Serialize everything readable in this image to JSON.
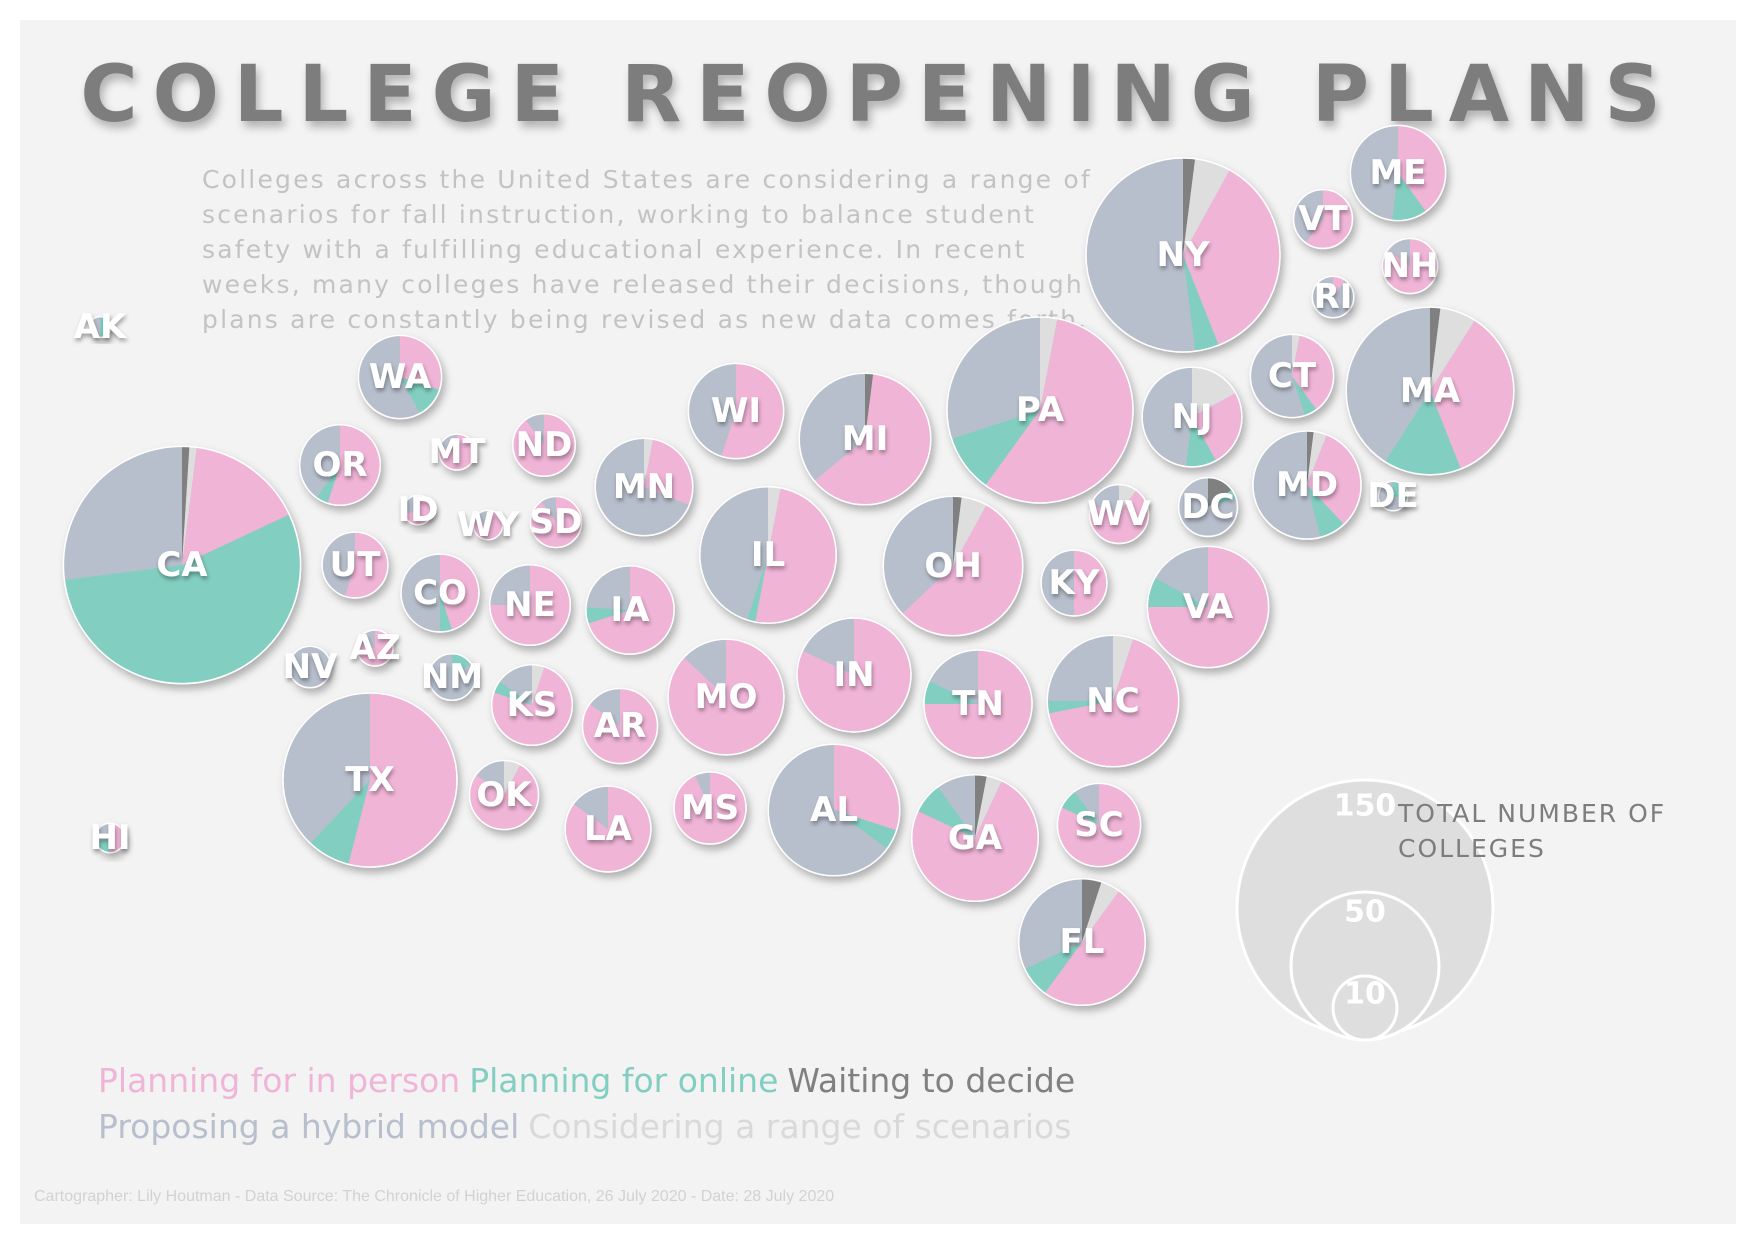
{
  "title": "COLLEGE REOPENING PLANS",
  "intro": "Colleges across the United States are considering a range of scenarios for fall instruction, working to balance student safety with a fulfilling educational experience. In recent weeks, many colleges have released their decisions, though plans are constantly being revised as new data comes forth.",
  "colors": {
    "in_person": "#f0b4d7",
    "online": "#82cfc1",
    "waiting": "#808080",
    "hybrid": "#b7bfcd",
    "range": "#dedede",
    "label": "#ffffff"
  },
  "legend": [
    {
      "key": "in_person",
      "label": "Planning for in person"
    },
    {
      "key": "online",
      "label": "Planning for online"
    },
    {
      "key": "waiting",
      "label": "Waiting to decide"
    },
    {
      "key": "hybrid",
      "label": "Proposing a hybrid model"
    },
    {
      "key": "range",
      "label": "Considering a range of scenarios"
    }
  ],
  "size_legend": {
    "title": "TOTAL NUMBER OF COLLEGES",
    "values": [
      150,
      50,
      10
    ]
  },
  "credits": "Cartographer: Lily Houtman - Data Source: The Chronicle of Higher Education, 26 July 2020 - Date: 28 July 2020",
  "chart_data": {
    "type": "pie",
    "segment_order": [
      "waiting",
      "range",
      "in_person",
      "online",
      "hybrid"
    ],
    "states": [
      {
        "code": "AK",
        "total": 1,
        "shares": {
          "waiting": 0,
          "range": 0,
          "in_person": 0,
          "online": 0.5,
          "hybrid": 0.5
        }
      },
      {
        "code": "WA",
        "total": 16,
        "shares": {
          "waiting": 0,
          "range": 0,
          "in_person": 0.3,
          "online": 0.12,
          "hybrid": 0.58
        }
      },
      {
        "code": "OR",
        "total": 15,
        "shares": {
          "waiting": 0,
          "range": 0,
          "in_person": 0.55,
          "online": 0.05,
          "hybrid": 0.4
        }
      },
      {
        "code": "CA",
        "total": 130,
        "shares": {
          "waiting": 0.01,
          "range": 0.01,
          "in_person": 0.16,
          "online": 0.55,
          "hybrid": 0.27
        }
      },
      {
        "code": "MT",
        "total": 3,
        "shares": {
          "waiting": 0,
          "range": 0,
          "in_person": 0.8,
          "online": 0,
          "hybrid": 0.2
        }
      },
      {
        "code": "ID",
        "total": 2,
        "shares": {
          "waiting": 0,
          "range": 0,
          "in_person": 0.7,
          "online": 0,
          "hybrid": 0.3
        }
      },
      {
        "code": "ND",
        "total": 9,
        "shares": {
          "waiting": 0,
          "range": 0,
          "in_person": 0.9,
          "online": 0,
          "hybrid": 0.1
        }
      },
      {
        "code": "WY",
        "total": 2,
        "shares": {
          "waiting": 0,
          "range": 0,
          "in_person": 0.8,
          "online": 0,
          "hybrid": 0.2
        }
      },
      {
        "code": "SD",
        "total": 6,
        "shares": {
          "waiting": 0,
          "range": 0,
          "in_person": 0.9,
          "online": 0,
          "hybrid": 0.1
        }
      },
      {
        "code": "UT",
        "total": 10,
        "shares": {
          "waiting": 0,
          "range": 0,
          "in_person": 0.55,
          "online": 0,
          "hybrid": 0.45
        }
      },
      {
        "code": "CO",
        "total": 14,
        "shares": {
          "waiting": 0,
          "range": 0,
          "in_person": 0.45,
          "online": 0.05,
          "hybrid": 0.5
        }
      },
      {
        "code": "NV",
        "total": 4,
        "shares": {
          "waiting": 0,
          "range": 0,
          "in_person": 0,
          "online": 0,
          "hybrid": 1
        }
      },
      {
        "code": "AZ",
        "total": 3,
        "shares": {
          "waiting": 0,
          "range": 0,
          "in_person": 0.8,
          "online": 0,
          "hybrid": 0.2
        }
      },
      {
        "code": "NM",
        "total": 5,
        "shares": {
          "waiting": 0,
          "range": 0,
          "in_person": 0,
          "online": 0.15,
          "hybrid": 0.85
        }
      },
      {
        "code": "NE",
        "total": 15,
        "shares": {
          "waiting": 0,
          "range": 0,
          "in_person": 0.75,
          "online": 0,
          "hybrid": 0.25
        }
      },
      {
        "code": "KS",
        "total": 15,
        "shares": {
          "waiting": 0,
          "range": 0.05,
          "in_person": 0.75,
          "online": 0.05,
          "hybrid": 0.15
        }
      },
      {
        "code": "TX",
        "total": 70,
        "shares": {
          "waiting": 0,
          "range": 0,
          "in_person": 0.54,
          "online": 0.08,
          "hybrid": 0.38
        }
      },
      {
        "code": "OK",
        "total": 11,
        "shares": {
          "waiting": 0,
          "range": 0.08,
          "in_person": 0.77,
          "online": 0,
          "hybrid": 0.15
        }
      },
      {
        "code": "HI",
        "total": 2,
        "shares": {
          "waiting": 0,
          "range": 0,
          "in_person": 0.5,
          "online": 0.2,
          "hybrid": 0.3
        }
      },
      {
        "code": "MN",
        "total": 22,
        "shares": {
          "waiting": 0,
          "range": 0.03,
          "in_person": 0.28,
          "online": 0,
          "hybrid": 0.69
        }
      },
      {
        "code": "IA",
        "total": 18,
        "shares": {
          "waiting": 0,
          "range": 0,
          "in_person": 0.7,
          "online": 0.06,
          "hybrid": 0.24
        }
      },
      {
        "code": "AR",
        "total": 13,
        "shares": {
          "waiting": 0,
          "range": 0,
          "in_person": 0.85,
          "online": 0,
          "hybrid": 0.15
        }
      },
      {
        "code": "LA",
        "total": 17,
        "shares": {
          "waiting": 0,
          "range": 0,
          "in_person": 0.85,
          "online": 0,
          "hybrid": 0.15
        }
      },
      {
        "code": "MO",
        "total": 31,
        "shares": {
          "waiting": 0,
          "range": 0,
          "in_person": 0.87,
          "online": 0,
          "hybrid": 0.13
        }
      },
      {
        "code": "MS",
        "total": 12,
        "shares": {
          "waiting": 0,
          "range": 0,
          "in_person": 0.93,
          "online": 0,
          "hybrid": 0.07
        }
      },
      {
        "code": "WI",
        "total": 21,
        "shares": {
          "waiting": 0,
          "range": 0,
          "in_person": 0.55,
          "online": 0,
          "hybrid": 0.45
        }
      },
      {
        "code": "IL",
        "total": 43,
        "shares": {
          "waiting": 0,
          "range": 0.03,
          "in_person": 0.5,
          "online": 0.02,
          "hybrid": 0.45
        }
      },
      {
        "code": "IN",
        "total": 30,
        "shares": {
          "waiting": 0,
          "range": 0,
          "in_person": 0.82,
          "online": 0,
          "hybrid": 0.18
        }
      },
      {
        "code": "AL",
        "total": 40,
        "shares": {
          "waiting": 0,
          "range": 0,
          "in_person": 0.3,
          "online": 0.05,
          "hybrid": 0.65
        }
      },
      {
        "code": "MI",
        "total": 40,
        "shares": {
          "waiting": 0.02,
          "range": 0,
          "in_person": 0.62,
          "online": 0,
          "hybrid": 0.36
        }
      },
      {
        "code": "OH",
        "total": 45,
        "shares": {
          "waiting": 0.02,
          "range": 0.06,
          "in_person": 0.55,
          "online": 0,
          "hybrid": 0.37
        }
      },
      {
        "code": "TN",
        "total": 27,
        "shares": {
          "waiting": 0,
          "range": 0,
          "in_person": 0.75,
          "online": 0.07,
          "hybrid": 0.18
        }
      },
      {
        "code": "GA",
        "total": 37,
        "shares": {
          "waiting": 0.03,
          "range": 0.04,
          "in_person": 0.75,
          "online": 0.08,
          "hybrid": 0.1
        }
      },
      {
        "code": "PA",
        "total": 80,
        "shares": {
          "waiting": 0,
          "range": 0.03,
          "in_person": 0.57,
          "online": 0.1,
          "hybrid": 0.3
        }
      },
      {
        "code": "KY",
        "total": 10,
        "shares": {
          "waiting": 0,
          "range": 0,
          "in_person": 0.5,
          "online": 0,
          "hybrid": 0.5
        }
      },
      {
        "code": "WV",
        "total": 8,
        "shares": {
          "waiting": 0,
          "range": 0.1,
          "in_person": 0.7,
          "online": 0,
          "hybrid": 0.2
        }
      },
      {
        "code": "NY",
        "total": 87,
        "shares": {
          "waiting": 0.02,
          "range": 0.06,
          "in_person": 0.36,
          "online": 0.04,
          "hybrid": 0.52
        }
      },
      {
        "code": "NJ",
        "total": 23,
        "shares": {
          "waiting": 0,
          "range": 0.17,
          "in_person": 0.25,
          "online": 0.1,
          "hybrid": 0.48
        }
      },
      {
        "code": "DC",
        "total": 8,
        "shares": {
          "waiting": 0.15,
          "range": 0,
          "in_person": 0,
          "online": 0.05,
          "hybrid": 0.8
        }
      },
      {
        "code": "MD",
        "total": 27,
        "shares": {
          "waiting": 0.02,
          "range": 0.04,
          "in_person": 0.32,
          "online": 0.08,
          "hybrid": 0.54
        }
      },
      {
        "code": "DE",
        "total": 2,
        "shares": {
          "waiting": 0,
          "range": 0,
          "in_person": 0,
          "online": 0.3,
          "hybrid": 0.7
        }
      },
      {
        "code": "VA",
        "total": 34,
        "shares": {
          "waiting": 0,
          "range": 0,
          "in_person": 0.75,
          "online": 0.08,
          "hybrid": 0.17
        }
      },
      {
        "code": "NC",
        "total": 40,
        "shares": {
          "waiting": 0,
          "range": 0.05,
          "in_person": 0.67,
          "online": 0.03,
          "hybrid": 0.25
        }
      },
      {
        "code": "SC",
        "total": 16,
        "shares": {
          "waiting": 0,
          "range": 0,
          "in_person": 0.82,
          "online": 0.08,
          "hybrid": 0.1
        }
      },
      {
        "code": "FL",
        "total": 37,
        "shares": {
          "waiting": 0.05,
          "range": 0.05,
          "in_person": 0.5,
          "online": 0.08,
          "hybrid": 0.32
        }
      },
      {
        "code": "ME",
        "total": 21,
        "shares": {
          "waiting": 0,
          "range": 0,
          "in_person": 0.4,
          "online": 0.12,
          "hybrid": 0.48
        }
      },
      {
        "code": "VT",
        "total": 8,
        "shares": {
          "waiting": 0,
          "range": 0,
          "in_person": 0.6,
          "online": 0,
          "hybrid": 0.4
        }
      },
      {
        "code": "NH",
        "total": 7,
        "shares": {
          "waiting": 0,
          "range": 0,
          "in_person": 0.85,
          "online": 0,
          "hybrid": 0.15
        }
      },
      {
        "code": "RI",
        "total": 4,
        "shares": {
          "waiting": 0,
          "range": 0,
          "in_person": 0.1,
          "online": 0,
          "hybrid": 0.9
        }
      },
      {
        "code": "CT",
        "total": 16,
        "shares": {
          "waiting": 0,
          "range": 0.03,
          "in_person": 0.37,
          "online": 0.05,
          "hybrid": 0.55
        }
      },
      {
        "code": "MA",
        "total": 65,
        "shares": {
          "waiting": 0.02,
          "range": 0.07,
          "in_person": 0.35,
          "online": 0.15,
          "hybrid": 0.41
        }
      }
    ]
  }
}
